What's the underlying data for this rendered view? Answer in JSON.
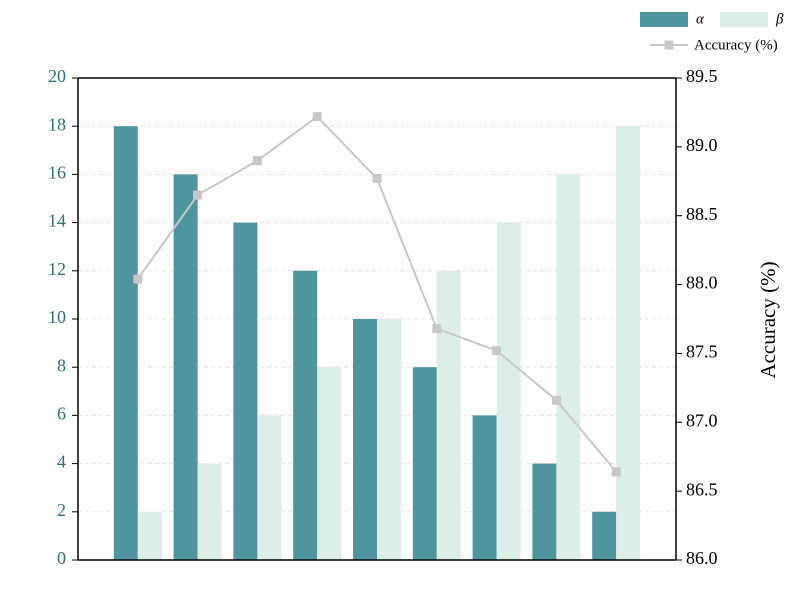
{
  "chart_data": {
    "type": "bar-line",
    "categories": [
      null,
      null,
      null,
      null,
      null,
      null,
      null,
      null,
      null
    ],
    "series": [
      {
        "name": "α",
        "type": "bar",
        "color": "#4e959e",
        "values": [
          18,
          16,
          14,
          12,
          10,
          8,
          6,
          4,
          2
        ]
      },
      {
        "name": "β",
        "type": "bar",
        "color": "#ddede8",
        "values": [
          2,
          4,
          6,
          8,
          10,
          12,
          14,
          16,
          18
        ]
      },
      {
        "name": "Accuracy (%)",
        "type": "line",
        "axis": "y2",
        "color": "#c8c8c8",
        "values": [
          88.04,
          88.65,
          88.9,
          89.22,
          88.77,
          87.68,
          87.52,
          87.16,
          86.64
        ]
      }
    ],
    "ylim": [
      0,
      20
    ],
    "yticks": [
      0,
      2,
      4,
      6,
      8,
      10,
      12,
      14,
      16,
      18,
      20
    ],
    "y2lim": [
      86.0,
      89.5
    ],
    "y2ticks": [
      {
        "value": 86,
        "label": "86.0"
      },
      86.5,
      {
        "value": 87,
        "label": "87.0"
      },
      87.5,
      {
        "value": 88,
        "label": "88.0"
      },
      88.5,
      {
        "value": 89,
        "label": "89.0"
      },
      89.5
    ],
    "y2label": "Accuracy (%)",
    "grid": true,
    "legend": "top-right"
  }
}
